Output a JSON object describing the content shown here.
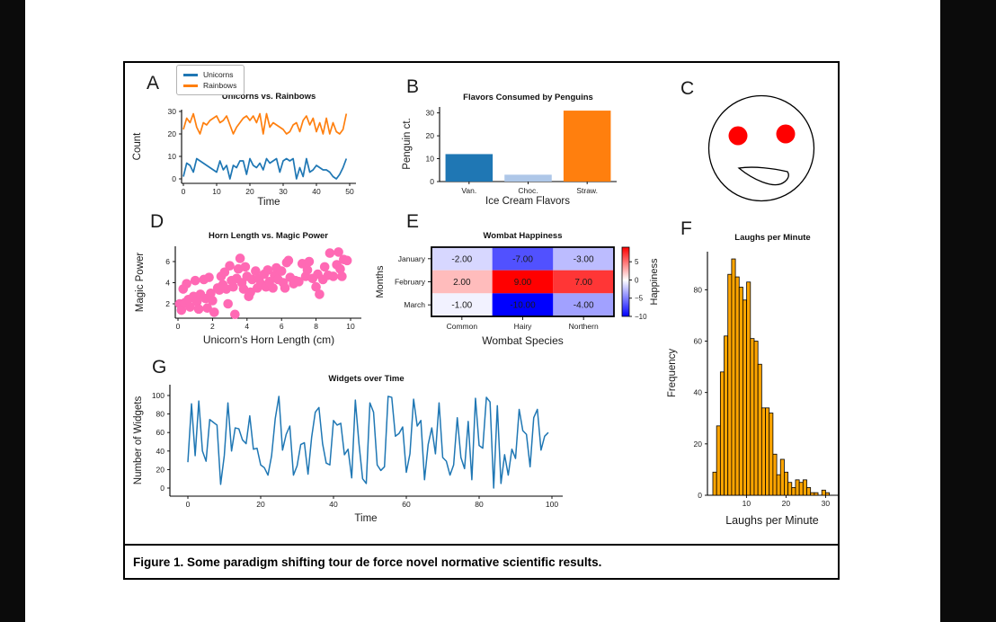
{
  "figure": {
    "caption": "Figure 1. Some paradigm shifting tour de force novel normative scientific results."
  },
  "chart_data": [
    {
      "panel_label": "A",
      "type": "line",
      "title": "Unicorns vs. Rainbows",
      "xlabel": "Time",
      "ylabel": "Count",
      "x_ticks": [
        0,
        10,
        20,
        30,
        40,
        50
      ],
      "y_ticks": [
        0,
        10,
        20,
        30
      ],
      "xlim": [
        -0.5,
        51.5
      ],
      "ylim": [
        -2,
        31
      ],
      "legend": {
        "position": "upper-left-outside",
        "entries": [
          {
            "name": "Unicorns",
            "color": "#1f77b4"
          },
          {
            "name": "Rainbows",
            "color": "#ff7f0e"
          }
        ]
      },
      "series": [
        {
          "name": "Unicorns",
          "color": "#1f77b4",
          "values": [
            1,
            7,
            6,
            3,
            9,
            8,
            7,
            6,
            5,
            4,
            3,
            8,
            4,
            6,
            0,
            6,
            5,
            8,
            8,
            2,
            9,
            6,
            5,
            7,
            4,
            9,
            7,
            8,
            9,
            3,
            8,
            9,
            8,
            9,
            0,
            5,
            1,
            9,
            3,
            4,
            6,
            5,
            4,
            4,
            3,
            1,
            0,
            2,
            5,
            9
          ]
        },
        {
          "name": "Rainbows",
          "color": "#ff7f0e",
          "values": [
            22,
            27,
            25,
            29,
            23,
            20,
            25,
            24,
            26,
            27,
            28,
            25,
            26,
            28,
            24,
            20,
            23,
            25,
            27,
            28,
            26,
            28,
            25,
            29,
            20,
            29,
            23,
            25,
            24,
            23,
            22,
            20,
            21,
            24,
            25,
            21,
            26,
            28,
            24,
            27,
            21,
            25,
            20,
            27,
            20,
            25,
            21,
            20,
            22,
            29
          ]
        }
      ]
    },
    {
      "panel_label": "B",
      "type": "bar",
      "title": "Flavors Consumed by Penguins",
      "xlabel": "Ice Cream Flavors",
      "ylabel": "Penguin ct.",
      "categories": [
        "Van.",
        "Choc.",
        "Straw."
      ],
      "values": [
        12,
        3,
        31
      ],
      "bar_colors": [
        "#1f77b4",
        "#aec7e8",
        "#ff7f0e"
      ],
      "y_ticks": [
        0,
        10,
        20,
        30
      ],
      "ylim": [
        0,
        32.6
      ]
    },
    {
      "panel_label": "C",
      "type": "drawing",
      "description": "cartoon face: circle outline, two red eyes, open slanted mouth",
      "outline_color": "#000000",
      "eye_color": "#ff0000",
      "face_fill": "#ffffff"
    },
    {
      "panel_label": "D",
      "type": "scatter",
      "title": "Horn Length vs. Magic Power",
      "xlabel": "Unicorn's Horn Length (cm)",
      "ylabel": "Magic Power",
      "x_ticks": [
        0,
        2,
        4,
        6,
        8,
        10
      ],
      "y_ticks": [
        2,
        4,
        6
      ],
      "xlim": [
        -0.5,
        10.6
      ],
      "ylim": [
        0.6,
        7.5
      ],
      "point_color": "#ff69b4",
      "points": [
        [
          0.1,
          2.0
        ],
        [
          0.2,
          1.4
        ],
        [
          0.3,
          3.4
        ],
        [
          0.4,
          2.1
        ],
        [
          0.5,
          3.9
        ],
        [
          0.6,
          2.4
        ],
        [
          0.7,
          1.7
        ],
        [
          0.9,
          2.7
        ],
        [
          1.0,
          4.2
        ],
        [
          1.1,
          2.2
        ],
        [
          1.2,
          1.5
        ],
        [
          1.3,
          2.9
        ],
        [
          1.5,
          4.3
        ],
        [
          1.6,
          2.5
        ],
        [
          1.7,
          1.6
        ],
        [
          1.8,
          4.5
        ],
        [
          1.9,
          3.0
        ],
        [
          2.0,
          2.3
        ],
        [
          2.1,
          1.2
        ],
        [
          2.3,
          3.5
        ],
        [
          2.4,
          3.3
        ],
        [
          2.5,
          4.6
        ],
        [
          2.6,
          3.8
        ],
        [
          2.7,
          5.0
        ],
        [
          2.8,
          3.4
        ],
        [
          2.9,
          2.0
        ],
        [
          3.0,
          5.6
        ],
        [
          3.1,
          4.2
        ],
        [
          3.2,
          3.6
        ],
        [
          3.3,
          1.0
        ],
        [
          3.4,
          4.4
        ],
        [
          3.5,
          5.3
        ],
        [
          3.6,
          6.3
        ],
        [
          3.7,
          4.0
        ],
        [
          3.8,
          3.4
        ],
        [
          3.9,
          5.5
        ],
        [
          4.0,
          4.6
        ],
        [
          4.1,
          2.7
        ],
        [
          4.2,
          3.1
        ],
        [
          4.3,
          4.3
        ],
        [
          4.5,
          5.1
        ],
        [
          4.6,
          3.5
        ],
        [
          4.7,
          4.4
        ],
        [
          4.8,
          3.9
        ],
        [
          5.0,
          4.8
        ],
        [
          5.1,
          3.6
        ],
        [
          5.2,
          5.2
        ],
        [
          5.3,
          4.1
        ],
        [
          5.5,
          3.5
        ],
        [
          5.6,
          4.7
        ],
        [
          5.7,
          5.4
        ],
        [
          5.8,
          4.3
        ],
        [
          6.0,
          5.1
        ],
        [
          6.1,
          4.0
        ],
        [
          6.2,
          3.5
        ],
        [
          6.3,
          5.9
        ],
        [
          6.4,
          6.1
        ],
        [
          6.5,
          4.5
        ],
        [
          6.7,
          3.9
        ],
        [
          6.8,
          4.2
        ],
        [
          7.0,
          4.1
        ],
        [
          7.2,
          5.8
        ],
        [
          7.4,
          4.6
        ],
        [
          7.5,
          5.2
        ],
        [
          7.6,
          6.0
        ],
        [
          7.8,
          4.4
        ],
        [
          8.0,
          3.6
        ],
        [
          8.1,
          4.8
        ],
        [
          8.2,
          2.9
        ],
        [
          8.4,
          4.3
        ],
        [
          8.5,
          5.5
        ],
        [
          8.7,
          4.7
        ],
        [
          8.8,
          6.8
        ],
        [
          9.0,
          4.6
        ],
        [
          9.2,
          5.7
        ],
        [
          9.3,
          6.9
        ],
        [
          9.4,
          5.3
        ],
        [
          9.5,
          4.6
        ],
        [
          9.6,
          6.2
        ],
        [
          9.8,
          6.1
        ]
      ]
    },
    {
      "panel_label": "E",
      "type": "heatmap",
      "title": "Wombat Happiness",
      "xlabel": "Wombat Species",
      "ylabel": "Months",
      "rows": [
        "January",
        "February",
        "March"
      ],
      "columns": [
        "Common",
        "Hairy",
        "Northern"
      ],
      "values": [
        [
          -2,
          -7,
          -3
        ],
        [
          2,
          9,
          7
        ],
        [
          -1,
          -10,
          -4
        ]
      ],
      "value_decimals": 2,
      "colormap": "bwr",
      "vmin": -10,
      "vmax": 9,
      "colorbar_ticks": [
        5,
        0,
        -5,
        -10
      ],
      "colorbar_label": "Happiness"
    },
    {
      "panel_label": "F",
      "type": "histogram",
      "title": "Laughs per Minute",
      "xlabel": "Laughs per Minute",
      "ylabel": "Frequency",
      "bar_color": "#ffa500",
      "edge_color": "#000000",
      "bin_start": 1.5,
      "bin_width": 0.95,
      "frequencies": [
        9,
        27,
        48,
        62,
        86,
        92,
        85,
        81,
        76,
        83,
        61,
        60,
        51,
        34,
        34,
        32,
        16,
        8,
        14,
        9,
        5,
        3,
        6,
        5,
        6,
        3,
        1,
        1,
        0,
        2,
        1
      ],
      "x_ticks": [
        10,
        20,
        30
      ],
      "y_ticks": [
        0,
        20,
        40,
        60,
        80
      ],
      "xlim": [
        0,
        32
      ],
      "ylim": [
        0,
        95
      ]
    },
    {
      "panel_label": "G",
      "type": "line",
      "title": "Widgets over Time",
      "xlabel": "Time",
      "ylabel": "Number of Widgets",
      "x_ticks": [
        0,
        20,
        40,
        60,
        80,
        100
      ],
      "y_ticks": [
        0,
        20,
        40,
        60,
        80,
        100
      ],
      "xlim": [
        -5,
        103
      ],
      "ylim": [
        -5,
        104
      ],
      "series": [
        {
          "name": "Widgets",
          "color": "#1f77b4",
          "values": [
            28,
            91,
            35,
            94,
            40,
            29,
            74,
            71,
            68,
            4,
            35,
            92,
            40,
            65,
            64,
            52,
            48,
            78,
            42,
            43,
            25,
            22,
            14,
            35,
            75,
            99,
            41,
            58,
            67,
            14,
            24,
            47,
            49,
            15,
            55,
            82,
            87,
            48,
            27,
            25,
            73,
            68,
            70,
            36,
            42,
            11,
            95,
            48,
            10,
            5,
            92,
            82,
            25,
            19,
            23,
            99,
            98,
            56,
            59,
            66,
            17,
            37,
            96,
            67,
            73,
            9,
            47,
            65,
            37,
            92,
            33,
            29,
            14,
            25,
            76,
            33,
            21,
            72,
            9,
            97,
            46,
            43,
            98,
            93,
            0,
            89,
            5,
            36,
            14,
            42,
            32,
            85,
            62,
            58,
            23,
            76,
            85,
            41,
            56,
            60
          ]
        }
      ]
    }
  ]
}
